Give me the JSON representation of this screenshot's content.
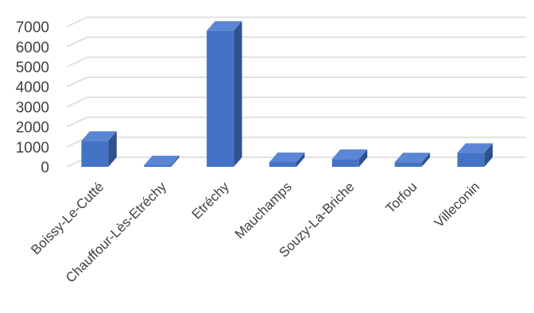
{
  "chart_data": {
    "type": "bar",
    "style": "3d-column",
    "categories": [
      "Boissy-Le-Cutté",
      "Chauffour-Lès-Etréchy",
      "Etréchy",
      "Mauchamps",
      "Souzy-La-Briche",
      "Torfou",
      "Villeconin"
    ],
    "values": [
      1300,
      80,
      6800,
      240,
      390,
      230,
      700
    ],
    "ylim": [
      0,
      7000
    ],
    "yticks": [
      0,
      1000,
      2000,
      3000,
      4000,
      5000,
      6000,
      7000
    ],
    "grid": true,
    "legend": "none",
    "colors": {
      "front": "#4472c4",
      "side": "#2f528f",
      "top": "#5b86d6",
      "grid": "#d9d9d9"
    }
  }
}
